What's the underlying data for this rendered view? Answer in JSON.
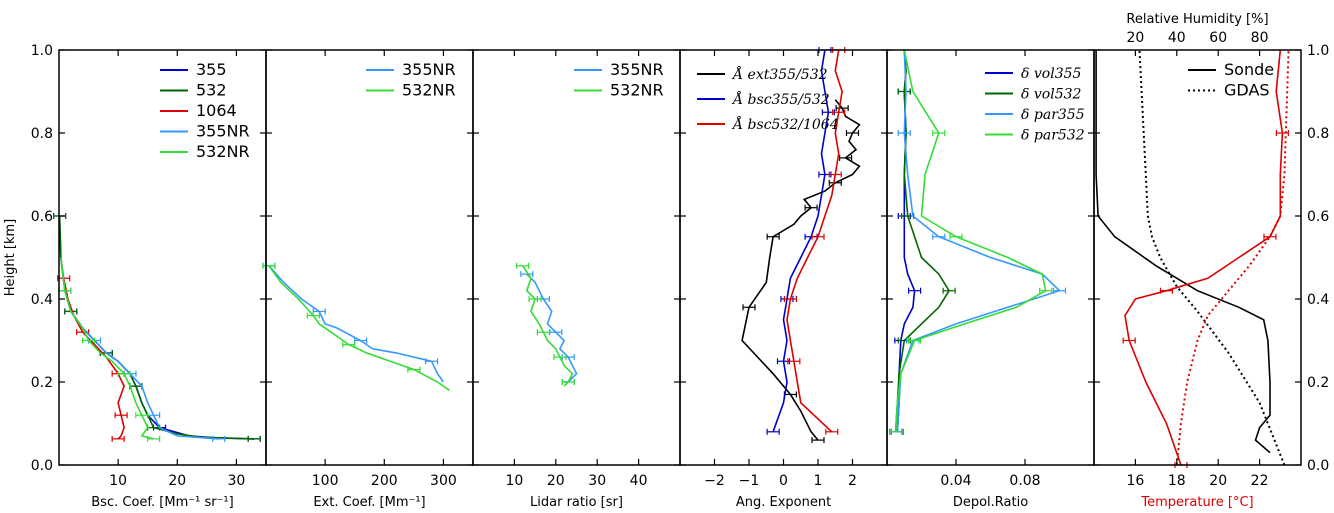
{
  "chart_data": [
    {
      "type": "line",
      "xlabel": "Bsc. Coef. [Mm⁻¹ sr⁻¹]",
      "ylabel": "Height [km]",
      "xlim": [
        0,
        35
      ],
      "ylim": [
        0,
        1.0
      ],
      "xticks": [
        10,
        20,
        30
      ],
      "yticks": [
        0.0,
        0.2,
        0.4,
        0.6,
        0.8,
        1.0
      ],
      "legend": [
        "355",
        "532",
        "1064",
        "355NR",
        "532NR"
      ],
      "series": [
        {
          "name": "355",
          "color": "#0000cc",
          "x": [
            33,
            27,
            22,
            17,
            15,
            14,
            13,
            12,
            10,
            8,
            6,
            4,
            2,
            1,
            0.3,
            0.1
          ],
          "y": [
            0.063,
            0.065,
            0.07,
            0.09,
            0.12,
            0.15,
            0.19,
            0.22,
            0.25,
            0.27,
            0.3,
            0.33,
            0.37,
            0.42,
            0.5,
            0.6
          ]
        },
        {
          "name": "532",
          "color": "#006600",
          "x": [
            33,
            24,
            20,
            16,
            15,
            14,
            13,
            12,
            10,
            8,
            6,
            4,
            2,
            1,
            0.3,
            0.1
          ],
          "y": [
            0.063,
            0.067,
            0.075,
            0.09,
            0.12,
            0.15,
            0.19,
            0.22,
            0.25,
            0.27,
            0.3,
            0.33,
            0.37,
            0.42,
            0.5,
            0.6
          ]
        },
        {
          "name": "1064",
          "color": "#dd0000",
          "x": [
            10,
            10.5,
            11,
            10.5,
            10,
            11,
            10,
            8,
            6,
            4,
            2.5,
            1.5,
            0.8,
            0.3
          ],
          "y": [
            0.063,
            0.07,
            0.09,
            0.12,
            0.15,
            0.19,
            0.22,
            0.26,
            0.29,
            0.32,
            0.36,
            0.4,
            0.45,
            0.5
          ]
        },
        {
          "name": "355NR",
          "color": "#3399ff",
          "x": [
            27,
            20,
            17,
            16,
            15,
            14,
            12,
            10,
            8,
            6,
            4,
            2,
            1,
            0.3
          ],
          "y": [
            0.063,
            0.07,
            0.09,
            0.12,
            0.15,
            0.19,
            0.22,
            0.25,
            0.27,
            0.3,
            0.33,
            0.37,
            0.42,
            0.5
          ]
        },
        {
          "name": "532NR",
          "color": "#33dd33",
          "x": [
            16,
            14,
            15,
            14,
            13,
            12,
            11,
            9,
            7,
            5,
            4,
            2,
            1,
            0.3
          ],
          "y": [
            0.063,
            0.07,
            0.09,
            0.12,
            0.15,
            0.19,
            0.22,
            0.25,
            0.27,
            0.3,
            0.33,
            0.37,
            0.42,
            0.5
          ]
        }
      ]
    },
    {
      "type": "line",
      "xlabel": "Ext. Coef. [Mm⁻¹]",
      "xlim": [
        0,
        350
      ],
      "ylim": [
        0,
        1.0
      ],
      "xticks": [
        100,
        200,
        300
      ],
      "legend": [
        "355NR",
        "532NR"
      ],
      "series": [
        {
          "name": "355NR",
          "color": "#3399ff",
          "x": [
            5,
            30,
            60,
            90,
            100,
            120,
            160,
            180,
            220,
            280,
            290,
            300
          ],
          "y": [
            0.48,
            0.44,
            0.4,
            0.37,
            0.34,
            0.33,
            0.3,
            0.28,
            0.27,
            0.25,
            0.22,
            0.2
          ]
        },
        {
          "name": "532NR",
          "color": "#33dd33",
          "x": [
            5,
            25,
            55,
            80,
            90,
            110,
            140,
            170,
            210,
            250,
            290,
            310
          ],
          "y": [
            0.48,
            0.44,
            0.4,
            0.36,
            0.34,
            0.32,
            0.29,
            0.27,
            0.25,
            0.23,
            0.2,
            0.18
          ]
        }
      ]
    },
    {
      "type": "line",
      "xlabel": "Lidar ratio [sr]",
      "xlim": [
        0,
        50
      ],
      "ylim": [
        0,
        1.0
      ],
      "xticks": [
        10,
        20,
        30,
        40
      ],
      "legend": [
        "355NR",
        "532NR"
      ],
      "series": [
        {
          "name": "355NR",
          "color": "#3399ff",
          "x": [
            13,
            15,
            16,
            17,
            19,
            18,
            20,
            22,
            21,
            23,
            24,
            25,
            23,
            22
          ],
          "y": [
            0.46,
            0.44,
            0.42,
            0.4,
            0.37,
            0.34,
            0.32,
            0.3,
            0.28,
            0.26,
            0.24,
            0.22,
            0.2,
            0.2
          ]
        },
        {
          "name": "532NR",
          "color": "#33dd33",
          "x": [
            12,
            14,
            13,
            15,
            14,
            16,
            17,
            18,
            20,
            21,
            22,
            24,
            23,
            22
          ],
          "y": [
            0.48,
            0.45,
            0.42,
            0.4,
            0.37,
            0.34,
            0.32,
            0.3,
            0.28,
            0.26,
            0.24,
            0.22,
            0.2,
            0.19
          ]
        }
      ]
    },
    {
      "type": "line",
      "xlabel": "Ang. Exponent",
      "xlim": [
        -3,
        3
      ],
      "ylim": [
        0,
        1.0
      ],
      "xticks": [
        -2,
        -1,
        0,
        1,
        2
      ],
      "legend": [
        "Å ext355/532",
        "Å bsc355/532",
        "Å bsc532/1064"
      ],
      "series": [
        {
          "name": "Å ext355/532",
          "color": "#000000",
          "x": [
            1.0,
            0.8,
            0.5,
            0.2,
            -0.3,
            -1.2,
            -1.0,
            -0.5,
            -0.4,
            -0.3,
            0.3,
            0.5,
            0.8,
            0.6,
            1.2,
            1.5,
            2.0,
            2.2,
            1.8,
            2.1,
            1.9,
            2.0,
            2.2,
            1.8,
            1.7,
            1.5
          ],
          "y": [
            0.06,
            0.08,
            0.13,
            0.17,
            0.22,
            0.3,
            0.38,
            0.44,
            0.5,
            0.55,
            0.58,
            0.6,
            0.62,
            0.64,
            0.66,
            0.68,
            0.7,
            0.72,
            0.74,
            0.76,
            0.78,
            0.8,
            0.82,
            0.84,
            0.86,
            0.88
          ]
        },
        {
          "name": "Å bsc355/532",
          "color": "#0000cc",
          "x": [
            -0.3,
            0.0,
            0.1,
            0.0,
            0.1,
            0.0,
            0.1,
            0.2,
            0.5,
            0.8,
            1.0,
            1.1,
            1.2,
            1.1,
            1.2,
            1.3,
            1.2,
            1.1,
            1.2
          ],
          "y": [
            0.08,
            0.15,
            0.2,
            0.25,
            0.3,
            0.35,
            0.4,
            0.45,
            0.5,
            0.55,
            0.6,
            0.65,
            0.7,
            0.75,
            0.8,
            0.85,
            0.9,
            0.95,
            1.0
          ]
        },
        {
          "name": "Å bsc532/1064",
          "color": "#dd0000",
          "x": [
            1.4,
            0.5,
            0.4,
            0.3,
            0.2,
            0.1,
            0.2,
            0.4,
            0.7,
            1.0,
            1.2,
            1.4,
            1.5,
            1.6,
            1.5,
            1.6,
            1.7,
            1.5,
            1.6
          ],
          "y": [
            0.08,
            0.15,
            0.2,
            0.25,
            0.3,
            0.35,
            0.4,
            0.45,
            0.5,
            0.55,
            0.6,
            0.65,
            0.7,
            0.75,
            0.8,
            0.85,
            0.9,
            0.95,
            1.0
          ]
        }
      ]
    },
    {
      "type": "line",
      "xlabel": "Depol.Ratio",
      "xlim": [
        0,
        0.12
      ],
      "ylim": [
        0,
        1.0
      ],
      "xticks": [
        0.04,
        0.08
      ],
      "legend": [
        "δ vol355",
        "δ vol532",
        "δ par355",
        "δ par532"
      ],
      "series": [
        {
          "name": "δ vol355",
          "color": "#0000cc",
          "x": [
            0.006,
            0.007,
            0.007,
            0.008,
            0.01,
            0.015,
            0.016,
            0.012,
            0.01,
            0.01,
            0.01,
            0.011,
            0.01,
            0.011,
            0.01
          ],
          "y": [
            0.08,
            0.15,
            0.22,
            0.3,
            0.34,
            0.38,
            0.42,
            0.46,
            0.5,
            0.6,
            0.7,
            0.8,
            0.9,
            0.95,
            1.0
          ]
        },
        {
          "name": "δ vol532",
          "color": "#006600",
          "x": [
            0.005,
            0.006,
            0.007,
            0.01,
            0.02,
            0.03,
            0.036,
            0.03,
            0.02,
            0.012,
            0.01,
            0.011,
            0.01,
            0.011,
            0.01
          ],
          "y": [
            0.08,
            0.15,
            0.22,
            0.3,
            0.34,
            0.38,
            0.42,
            0.46,
            0.5,
            0.6,
            0.7,
            0.8,
            0.9,
            0.95,
            1.0
          ]
        },
        {
          "name": "δ par355",
          "color": "#3399ff",
          "x": [
            0.006,
            0.007,
            0.008,
            0.015,
            0.04,
            0.07,
            0.1,
            0.09,
            0.06,
            0.03,
            0.015,
            0.012,
            0.01,
            0.011,
            0.01
          ],
          "y": [
            0.08,
            0.15,
            0.22,
            0.3,
            0.34,
            0.38,
            0.42,
            0.46,
            0.5,
            0.55,
            0.6,
            0.7,
            0.8,
            0.9,
            1.0
          ]
        },
        {
          "name": "δ par532",
          "color": "#33dd33",
          "x": [
            0.005,
            0.006,
            0.008,
            0.016,
            0.045,
            0.075,
            0.092,
            0.09,
            0.07,
            0.04,
            0.02,
            0.022,
            0.03,
            0.015,
            0.01
          ],
          "y": [
            0.08,
            0.15,
            0.22,
            0.3,
            0.34,
            0.38,
            0.42,
            0.46,
            0.5,
            0.55,
            0.6,
            0.7,
            0.8,
            0.9,
            1.0
          ]
        }
      ]
    },
    {
      "type": "line",
      "xlabel": "Temperature [°C]",
      "xlabel_color": "#dd0000",
      "x2label": "Relative Humidity [%]",
      "xlim": [
        14,
        24
      ],
      "x2lim": [
        0,
        100
      ],
      "ylim": [
        0,
        1.0
      ],
      "xticks": [
        16,
        18,
        20,
        22
      ],
      "x2ticks": [
        20,
        40,
        60,
        80
      ],
      "ytick_labels_right": true,
      "legend": [
        "Sonde",
        "GDAS"
      ],
      "series": [
        {
          "name": "Sonde RH",
          "axis": "x2",
          "color": "#000000",
          "style": "solid",
          "x": [
            85,
            78,
            80,
            85,
            85,
            84,
            82,
            70,
            50,
            30,
            10,
            2,
            1,
            1,
            1
          ],
          "y": [
            0.03,
            0.06,
            0.09,
            0.12,
            0.2,
            0.3,
            0.35,
            0.38,
            0.42,
            0.48,
            0.55,
            0.6,
            0.7,
            0.8,
            1.0
          ]
        },
        {
          "name": "GDAS RH",
          "axis": "x2",
          "color": "#000000",
          "style": "dotted",
          "x": [
            92,
            80,
            65,
            50,
            40,
            32,
            28,
            26,
            25,
            24,
            23,
            22
          ],
          "y": [
            0.0,
            0.15,
            0.27,
            0.37,
            0.43,
            0.5,
            0.55,
            0.6,
            0.7,
            0.8,
            0.9,
            1.0
          ]
        },
        {
          "name": "Sonde T",
          "axis": "x",
          "color": "#dd0000",
          "style": "solid",
          "x": [
            18.2,
            17.5,
            16.5,
            15.7,
            15.5,
            16,
            17.5,
            19.5,
            21,
            22.5,
            23,
            23,
            23.1,
            22.8,
            23
          ],
          "y": [
            0.0,
            0.1,
            0.2,
            0.3,
            0.36,
            0.4,
            0.42,
            0.45,
            0.5,
            0.55,
            0.6,
            0.7,
            0.8,
            0.9,
            1.0
          ]
        },
        {
          "name": "GDAS T",
          "axis": "x",
          "color": "#dd0000",
          "style": "dotted",
          "x": [
            18,
            18.2,
            18.5,
            19,
            19.5,
            20.5,
            21.5,
            22.5,
            23,
            23.2,
            23.3,
            23.4
          ],
          "y": [
            0.0,
            0.1,
            0.2,
            0.3,
            0.36,
            0.42,
            0.48,
            0.55,
            0.6,
            0.7,
            0.85,
            1.0
          ]
        }
      ]
    }
  ]
}
